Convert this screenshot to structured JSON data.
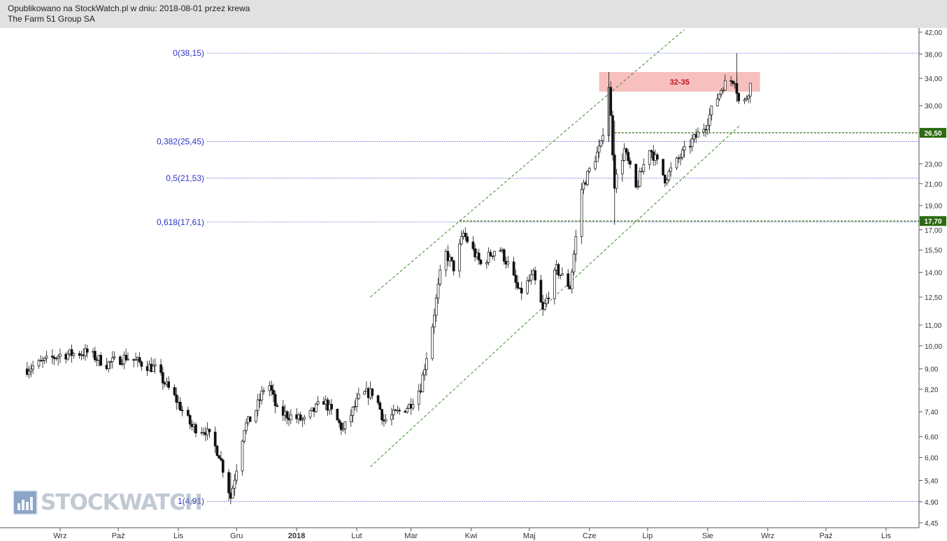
{
  "header": {
    "line1": "Opublikowano na StockWatch.pl w dniu: 2018-08-01 przez krewa",
    "line2": "The Farm 51 Group SA"
  },
  "logo": {
    "text": "STOCKWATCH",
    "icon": "bar-chart-logo-icon"
  },
  "chart_data": {
    "type": "candlestick",
    "title": "The Farm 51 Group SA",
    "x_ticks": [
      "Wrz",
      "Paź",
      "Lis",
      "Gru",
      "2018",
      "Lut",
      "Mar",
      "Kwi",
      "Maj",
      "Cze",
      "Lip",
      "Sie",
      "Wrz",
      "Paź",
      "Lis"
    ],
    "y_ticks": [
      "42,00",
      "38,00",
      "34,00",
      "30,00",
      "26,50",
      "23,00",
      "21,00",
      "19,00",
      "17,00",
      "15,50",
      "14,00",
      "12,50",
      "11,00",
      "10,00",
      "9,00",
      "8,20",
      "7,40",
      "6,60",
      "6,00",
      "5,40",
      "4,90",
      "4,45"
    ],
    "y_scale": "log",
    "grid": false,
    "fib_levels": [
      {
        "label": "0(38,15)",
        "value": 38.15
      },
      {
        "label": "0,382(25,45)",
        "value": 25.45
      },
      {
        "label": "0,5(21,53)",
        "value": 21.53
      },
      {
        "label": "0,618(17,61)",
        "value": 17.61
      },
      {
        "label": "1(4,91)",
        "value": 4.91
      }
    ],
    "support_levels": [
      {
        "label": "26,50",
        "value": 26.5,
        "color": "#2e6b12"
      },
      {
        "label": "17,70",
        "value": 17.7,
        "color": "#2e6b12"
      }
    ],
    "zone": {
      "label": "32-35",
      "low": 32,
      "high": 35,
      "color": "#f6a9a9",
      "text_color": "#c0131b"
    },
    "close_path": [
      [
        "2017-08-15",
        9.0
      ],
      [
        "2017-09-01",
        9.6
      ],
      [
        "2017-09-15",
        9.7
      ],
      [
        "2017-09-25",
        9.2
      ],
      [
        "2017-10-05",
        9.5
      ],
      [
        "2017-10-20",
        9.0
      ],
      [
        "2017-10-31",
        7.8
      ],
      [
        "2017-11-08",
        6.9
      ],
      [
        "2017-11-15",
        6.8
      ],
      [
        "2017-11-22",
        6.1
      ],
      [
        "2017-11-28",
        5.0
      ],
      [
        "2017-12-05",
        6.9
      ],
      [
        "2017-12-10",
        7.3
      ],
      [
        "2017-12-17",
        8.6
      ],
      [
        "2017-12-22",
        7.4
      ],
      [
        "2018-01-05",
        7.1
      ],
      [
        "2018-01-15",
        7.8
      ],
      [
        "2018-01-25",
        6.8
      ],
      [
        "2018-02-03",
        8.0
      ],
      [
        "2018-02-10",
        8.1
      ],
      [
        "2018-02-15",
        7.1
      ],
      [
        "2018-02-28",
        7.6
      ],
      [
        "2018-03-06",
        8.3
      ],
      [
        "2018-03-12",
        11.0
      ],
      [
        "2018-03-18",
        15.5
      ],
      [
        "2018-03-23",
        14.3
      ],
      [
        "2018-03-28",
        16.7
      ],
      [
        "2018-04-06",
        14.5
      ],
      [
        "2018-04-15",
        15.8
      ],
      [
        "2018-04-20",
        14.5
      ],
      [
        "2018-04-26",
        12.7
      ],
      [
        "2018-05-03",
        13.8
      ],
      [
        "2018-05-08",
        11.7
      ],
      [
        "2018-05-15",
        14.2
      ],
      [
        "2018-05-22",
        13.1
      ],
      [
        "2018-05-28",
        20.5
      ],
      [
        "2018-06-02",
        22.8
      ],
      [
        "2018-06-07",
        25.0
      ],
      [
        "2018-06-11",
        33.0
      ],
      [
        "2018-06-14",
        21.0
      ],
      [
        "2018-06-19",
        24.5
      ],
      [
        "2018-06-25",
        20.5
      ],
      [
        "2018-07-02",
        24.8
      ],
      [
        "2018-07-10",
        21.5
      ],
      [
        "2018-07-17",
        23.5
      ],
      [
        "2018-07-24",
        25.5
      ],
      [
        "2018-07-31",
        27.5
      ],
      [
        "2018-08-04",
        30.0
      ],
      [
        "2018-08-09",
        33.0
      ],
      [
        "2018-08-15",
        34.0
      ],
      [
        "2018-08-18",
        29.0
      ],
      [
        "2018-08-23",
        33.0
      ]
    ],
    "annotations": [
      "32-35",
      "1(4,91)",
      "0,618(17,61)",
      "0,5(21,53)",
      "0,382(25,45)",
      "0(38,15)"
    ]
  }
}
